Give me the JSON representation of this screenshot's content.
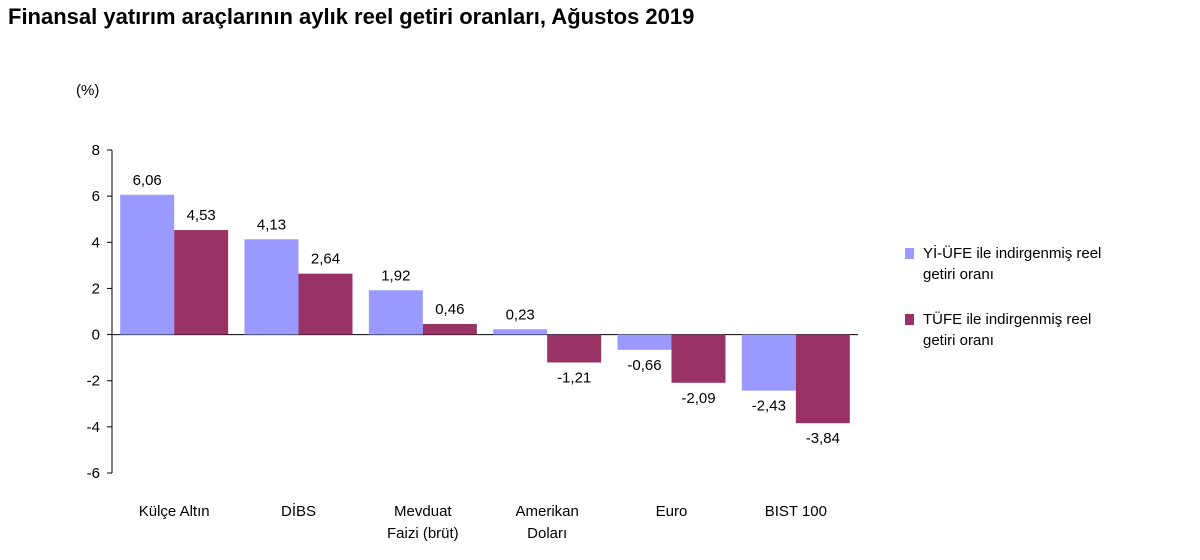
{
  "title": "Finansal yatırım araçlarının aylık reel getiri oranları, Ağustos 2019",
  "chart_data": {
    "type": "bar",
    "unit_label": "(%)",
    "categories": [
      [
        "Külçe Altın"
      ],
      [
        "DİBS"
      ],
      [
        "Mevduat",
        "Faizi (brüt)"
      ],
      [
        "Amerikan",
        "Doları"
      ],
      [
        "Euro"
      ],
      [
        "BIST 100"
      ]
    ],
    "series": [
      {
        "name": "Yİ-ÜFE ile indirgenmiş reel getiri oranı",
        "legend_lines": [
          "Yİ-ÜFE ile indirgenmiş reel",
          "getiri oranı"
        ],
        "color": "#9999ff",
        "values": [
          6.06,
          4.13,
          1.92,
          0.23,
          -0.66,
          -2.43
        ],
        "labels": [
          "6,06",
          "4,13",
          "1,92",
          "0,23",
          "-0,66",
          "-2,43"
        ]
      },
      {
        "name": "TÜFE ile indirgenmiş reel getiri oranı",
        "legend_lines": [
          "TÜFE ile indirgenmiş reel",
          "getiri oranı"
        ],
        "color": "#993366",
        "values": [
          4.53,
          2.64,
          0.46,
          -1.21,
          -2.09,
          -3.84
        ],
        "labels": [
          "4,53",
          "2,64",
          "0,46",
          "-1,21",
          "-2,09",
          "-3,84"
        ]
      }
    ],
    "ylim": [
      -6,
      8
    ],
    "yticks": [
      8,
      6,
      4,
      2,
      0,
      -2,
      -4,
      -6
    ],
    "ytick_labels": [
      "8",
      "6",
      "4",
      "2",
      "0",
      "-2",
      "-4",
      "-6"
    ],
    "grid": false,
    "legend_position": "right"
  }
}
